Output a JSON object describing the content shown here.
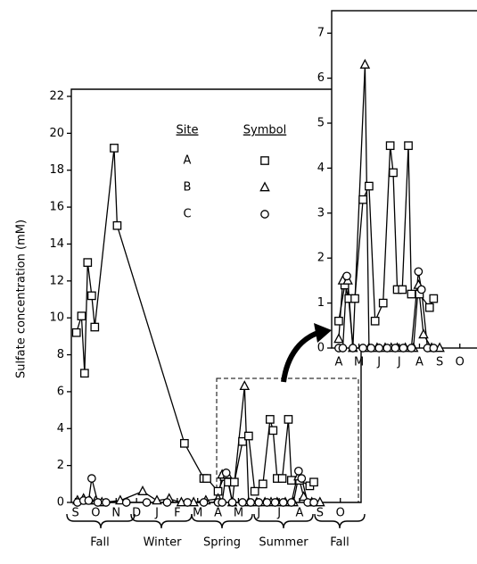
{
  "chart_data": [
    {
      "type": "line",
      "y_label": "Sulfate concentration (mM)",
      "legend_headers": [
        "Site",
        "Symbol"
      ],
      "xlim": [
        -0.2,
        13.8
      ],
      "ylim": [
        0,
        22
      ],
      "xticks": [
        {
          "value": 0,
          "label": "S"
        },
        {
          "value": 1,
          "label": "O"
        },
        {
          "value": 2,
          "label": "N"
        },
        {
          "value": 3,
          "label": "D"
        },
        {
          "value": 4,
          "label": "J"
        },
        {
          "value": 5,
          "label": "F"
        },
        {
          "value": 6,
          "label": "M"
        },
        {
          "value": 7,
          "label": "A"
        },
        {
          "value": 8,
          "label": "M"
        },
        {
          "value": 9,
          "label": "J"
        },
        {
          "value": 10,
          "label": "J"
        },
        {
          "value": 11,
          "label": "A"
        },
        {
          "value": 12,
          "label": "S"
        },
        {
          "value": 13,
          "label": "O"
        }
      ],
      "yticks": [
        0,
        2,
        4,
        6,
        8,
        10,
        12,
        14,
        16,
        18,
        20,
        22
      ],
      "seasons": [
        "Fall",
        "Winter",
        "Spring",
        "Summer",
        "Fall"
      ],
      "series": [
        {
          "name": "A",
          "marker": "square",
          "color": "#000",
          "x": [
            0.05,
            0.3,
            0.45,
            0.6,
            0.8,
            0.95,
            1.9,
            2.05,
            5.35,
            6.3,
            6.45,
            7.0,
            7.3,
            7.5,
            7.8,
            8.2,
            8.5,
            8.8,
            9.2,
            9.55,
            9.7,
            9.9,
            10.15,
            10.45,
            10.6,
            11.0,
            11.5,
            11.7
          ],
          "values": [
            9.2,
            10.1,
            7.0,
            13.0,
            11.2,
            9.5,
            19.2,
            15.0,
            3.2,
            1.3,
            1.3,
            0.6,
            1.4,
            1.1,
            1.1,
            3.3,
            3.6,
            0.6,
            1.0,
            4.5,
            3.9,
            1.3,
            1.3,
            4.5,
            1.2,
            1.2,
            0.9,
            1.1
          ]
        },
        {
          "name": "B",
          "marker": "triangle",
          "color": "#000",
          "x": [
            0.1,
            0.4,
            0.7,
            1.0,
            1.3,
            2.2,
            3.3,
            4.0,
            4.6,
            5.2,
            5.8,
            6.4,
            7.0,
            7.2,
            7.45,
            7.7,
            8.3,
            8.5,
            8.9,
            9.3,
            9.6,
            9.9,
            10.3,
            10.7,
            10.95,
            11.2,
            11.6,
            12.0
          ],
          "values": [
            0.1,
            0.2,
            0.1,
            0.1,
            0,
            0.1,
            0.6,
            0.1,
            0.2,
            0,
            0,
            0.1,
            0.2,
            1.5,
            1.5,
            0,
            6.3,
            0,
            0,
            0,
            0,
            0,
            0,
            0,
            1.4,
            0.3,
            0,
            0
          ]
        },
        {
          "name": "C",
          "marker": "circle",
          "color": "#000",
          "x": [
            0.1,
            0.4,
            0.65,
            0.8,
            1.1,
            1.5,
            2.5,
            3.5,
            4.5,
            5.5,
            6.3,
            7.0,
            7.2,
            7.4,
            7.7,
            8.2,
            8.6,
            9.0,
            9.4,
            9.8,
            10.2,
            10.6,
            10.95,
            11.1,
            11.4,
            11.7
          ],
          "values": [
            0,
            0.1,
            0.1,
            1.3,
            0,
            0,
            0,
            0,
            0,
            0,
            0,
            0,
            0,
            1.6,
            0,
            0,
            0,
            0,
            0,
            0,
            0,
            0,
            1.7,
            1.3,
            0,
            0
          ]
        }
      ]
    },
    {
      "type": "line",
      "xlim": [
        6.65,
        13.85
      ],
      "ylim": [
        0,
        7.5
      ],
      "xticks": [
        {
          "value": 7,
          "label": "A"
        },
        {
          "value": 8,
          "label": "M"
        },
        {
          "value": 9,
          "label": "J"
        },
        {
          "value": 10,
          "label": "J"
        },
        {
          "value": 11,
          "label": "A"
        },
        {
          "value": 12,
          "label": "S"
        },
        {
          "value": 13,
          "label": "O"
        }
      ],
      "yticks": [
        0,
        1,
        2,
        3,
        4,
        5,
        6,
        7
      ],
      "series": [
        {
          "name": "A",
          "marker": "square",
          "color": "#000",
          "x": [
            7.0,
            7.3,
            7.5,
            7.8,
            8.2,
            8.5,
            8.8,
            9.2,
            9.55,
            9.7,
            9.9,
            10.15,
            10.45,
            10.6,
            11.0,
            11.5,
            11.7
          ],
          "values": [
            0.6,
            1.4,
            1.1,
            1.1,
            3.3,
            3.6,
            0.6,
            1.0,
            4.5,
            3.9,
            1.3,
            1.3,
            4.5,
            1.2,
            1.2,
            0.9,
            1.1
          ]
        },
        {
          "name": "B",
          "marker": "triangle",
          "color": "#000",
          "x": [
            7.0,
            7.2,
            7.45,
            7.7,
            8.3,
            8.5,
            8.9,
            9.3,
            9.6,
            9.9,
            10.3,
            10.7,
            10.95,
            11.2,
            11.6,
            12.0
          ],
          "values": [
            0.2,
            1.5,
            1.5,
            0,
            6.3,
            0,
            0,
            0,
            0,
            0,
            0,
            0,
            1.4,
            0.3,
            0,
            0
          ]
        },
        {
          "name": "C",
          "marker": "circle",
          "color": "#000",
          "x": [
            7.0,
            7.2,
            7.4,
            7.7,
            8.2,
            8.6,
            9.0,
            9.4,
            9.8,
            10.2,
            10.6,
            10.95,
            11.1,
            11.4,
            11.7
          ],
          "values": [
            0,
            0,
            1.6,
            0,
            0,
            0,
            0,
            0,
            0,
            0,
            0,
            1.7,
            1.3,
            0,
            0
          ]
        }
      ]
    }
  ]
}
